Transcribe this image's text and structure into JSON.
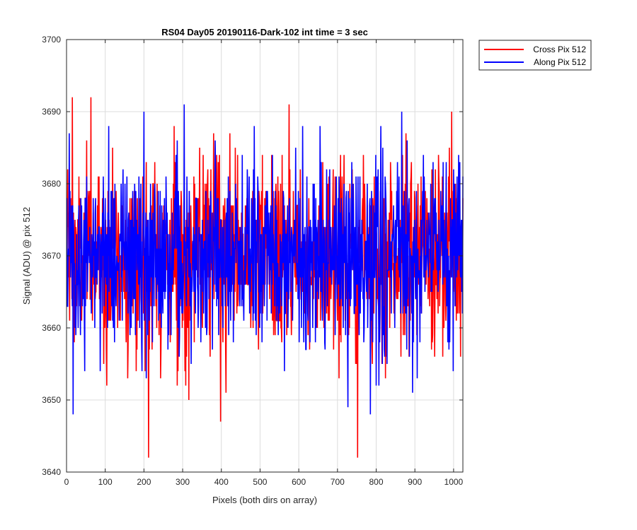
{
  "chart_data": {
    "type": "line",
    "title": "RS04 Day05 20190116-Dark-102 int time = 3 sec",
    "xlabel": "Pixels (both dirs on array)",
    "ylabel": "Signal (ADU) @ pix 512",
    "xlim": [
      0,
      1024
    ],
    "ylim": [
      3640,
      3700
    ],
    "xticks": [
      0,
      100,
      200,
      300,
      400,
      500,
      600,
      700,
      800,
      900,
      1000
    ],
    "yticks": [
      3640,
      3650,
      3660,
      3670,
      3680,
      3690,
      3700
    ],
    "grid": true,
    "legend_position": "outside-top-right",
    "series": [
      {
        "name": "Cross Pix 512",
        "color": "#ff0000",
        "summary": "noisy dark signal fluctuating around ~3670 ADU, range roughly 3642-3692",
        "x_range": [
          1,
          1024
        ],
        "mean": 3670,
        "min": 3642,
        "max": 3692,
        "notable_points": [
          {
            "x": 15,
            "y": 3692
          },
          {
            "x": 63,
            "y": 3692
          },
          {
            "x": 212,
            "y": 3642
          },
          {
            "x": 398,
            "y": 3647
          },
          {
            "x": 575,
            "y": 3691
          },
          {
            "x": 752,
            "y": 3642
          },
          {
            "x": 995,
            "y": 3690
          }
        ]
      },
      {
        "name": "Along Pix 512",
        "color": "#0000ff",
        "summary": "noisy dark signal fluctuating around ~3670 ADU, range roughly 3648-3691",
        "x_range": [
          1,
          1024
        ],
        "mean": 3670,
        "min": 3648,
        "max": 3691,
        "notable_points": [
          {
            "x": 17,
            "y": 3648
          },
          {
            "x": 200,
            "y": 3690
          },
          {
            "x": 304,
            "y": 3691
          },
          {
            "x": 727,
            "y": 3649
          },
          {
            "x": 785,
            "y": 3648
          },
          {
            "x": 866,
            "y": 3690
          }
        ]
      }
    ]
  }
}
